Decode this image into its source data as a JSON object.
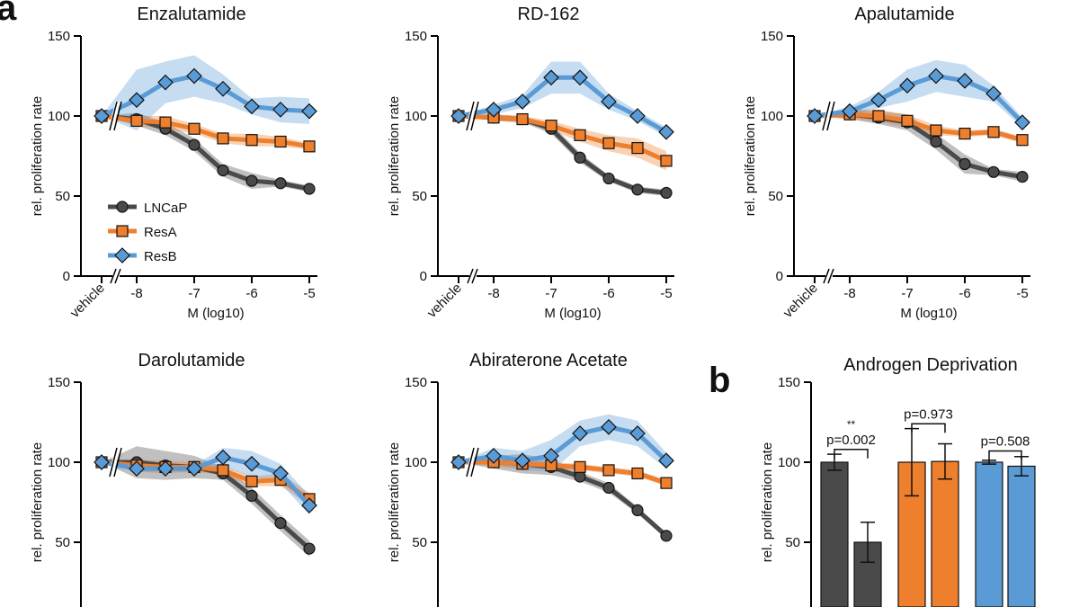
{
  "colors": {
    "LNCaP": "#4a4a4a",
    "ResA": "#ee7f2d",
    "ResB": "#5b9bd5"
  },
  "panel_labels": [
    "a",
    "b"
  ],
  "chart_data": [
    {
      "type": "line",
      "title": "Enzalutamide",
      "xlabel": "M (log10)",
      "ylabel": "rel. proliferation rate",
      "x": [
        "vehicle",
        -8,
        -7.5,
        -7,
        -6.5,
        -6,
        -5.5,
        -5
      ],
      "xticks": [
        "vehicle",
        "-8",
        "-7",
        "-6",
        "-5"
      ],
      "yticks": [
        "0",
        "50",
        "100",
        "150"
      ],
      "ylim": [
        0,
        150
      ],
      "legend": "lower-left",
      "series": [
        {
          "name": "LNCaP",
          "marker": "circle",
          "values": [
            100,
            98,
            92,
            82,
            66,
            59.5,
            58,
            54.5
          ],
          "err": [
            0,
            4,
            4,
            4,
            4,
            5,
            2,
            2
          ]
        },
        {
          "name": "ResA",
          "marker": "square",
          "values": [
            100,
            97,
            96,
            92,
            86,
            85,
            84,
            81
          ],
          "err": [
            0,
            3,
            4,
            3,
            3,
            4,
            3,
            2
          ]
        },
        {
          "name": "ResB",
          "marker": "diamond",
          "values": [
            100,
            110,
            121,
            125,
            117,
            106,
            104,
            103
          ],
          "err": [
            0,
            19,
            13,
            13,
            9,
            5,
            8,
            8
          ]
        }
      ]
    },
    {
      "type": "line",
      "title": "RD-162",
      "xlabel": "M (log10)",
      "ylabel": "rel. proliferation rate",
      "x": [
        "vehicle",
        -8,
        -7.5,
        -7,
        -6.5,
        -6,
        -5.5,
        -5
      ],
      "xticks": [
        "vehicle",
        "-8",
        "-7",
        "-6",
        "-5"
      ],
      "yticks": [
        "0",
        "50",
        "100",
        "150"
      ],
      "ylim": [
        0,
        150
      ],
      "series": [
        {
          "name": "LNCaP",
          "values": [
            100,
            99,
            98,
            92,
            74,
            61,
            54,
            52
          ],
          "err": [
            0,
            2,
            2,
            3,
            3,
            2,
            2,
            2
          ]
        },
        {
          "name": "ResA",
          "values": [
            100,
            99,
            98,
            94,
            88,
            83,
            80,
            72
          ],
          "err": [
            0,
            2,
            2,
            3,
            4,
            5,
            6,
            6
          ]
        },
        {
          "name": "ResB",
          "values": [
            100,
            104,
            109,
            124,
            124,
            109,
            100,
            90
          ],
          "err": [
            0,
            3,
            4,
            10,
            10,
            5,
            3,
            3
          ]
        }
      ]
    },
    {
      "type": "line",
      "title": "Apalutamide",
      "xlabel": "M (log10)",
      "ylabel": "rel. proliferation rate",
      "x": [
        "vehicle",
        -8,
        -7.5,
        -7,
        -6.5,
        -6,
        -5.5,
        -5
      ],
      "xticks": [
        "vehicle",
        "-8",
        "-7",
        "-6",
        "-5"
      ],
      "yticks": [
        "0",
        "50",
        "100",
        "150"
      ],
      "ylim": [
        0,
        150
      ],
      "series": [
        {
          "name": "LNCaP",
          "values": [
            100,
            101,
            99,
            96,
            84,
            70,
            65,
            62
          ],
          "err": [
            0,
            3,
            4,
            5,
            5,
            6,
            2,
            3
          ]
        },
        {
          "name": "ResA",
          "values": [
            100,
            101,
            100,
            97,
            91,
            89,
            90,
            85
          ],
          "err": [
            0,
            3,
            4,
            4,
            3,
            2,
            2,
            2
          ]
        },
        {
          "name": "ResB",
          "values": [
            100,
            103,
            110,
            119,
            125,
            122,
            114,
            96
          ],
          "err": [
            0,
            3,
            5,
            10,
            10,
            10,
            5,
            3
          ]
        }
      ]
    },
    {
      "type": "line",
      "title": "Darolutamide",
      "ylabel": "rel. proliferation rate",
      "x": [
        "vehicle",
        -8,
        -7.5,
        -7,
        -6.5,
        -6,
        -5.5,
        -5
      ],
      "yticks": [
        "50",
        "100",
        "150"
      ],
      "ylim": [
        0,
        150
      ],
      "series": [
        {
          "name": "LNCaP",
          "values": [
            100,
            100,
            98,
            97,
            93,
            79,
            62,
            46
          ],
          "err": [
            0,
            10,
            9,
            7,
            4,
            5,
            5,
            5
          ]
        },
        {
          "name": "ResA",
          "values": [
            100,
            98,
            97,
            97,
            95,
            88,
            89,
            77
          ],
          "err": [
            0,
            4,
            4,
            3,
            3,
            3,
            4,
            4
          ]
        },
        {
          "name": "ResB",
          "values": [
            100,
            96,
            96,
            96,
            103,
            99,
            93,
            73
          ],
          "err": [
            0,
            2,
            2,
            2,
            6,
            8,
            6,
            6
          ]
        }
      ]
    },
    {
      "type": "line",
      "title": "Abiraterone Acetate",
      "ylabel": "rel. proliferation rate",
      "x": [
        "vehicle",
        -8,
        -7.5,
        -7,
        -6.5,
        -6,
        -5.5,
        -5
      ],
      "yticks": [
        "50",
        "100",
        "150"
      ],
      "ylim": [
        0,
        150
      ],
      "series": [
        {
          "name": "LNCaP",
          "values": [
            100,
            100,
            99,
            97,
            91,
            84,
            70,
            54
          ],
          "err": [
            0,
            4,
            6,
            5,
            3,
            3,
            2,
            2
          ]
        },
        {
          "name": "ResA",
          "values": [
            100,
            100,
            99,
            98,
            97,
            95,
            93,
            87
          ],
          "err": [
            0,
            3,
            3,
            2,
            2,
            2,
            2,
            2
          ]
        },
        {
          "name": "ResB",
          "values": [
            100,
            104,
            101,
            104,
            118,
            122,
            118,
            101
          ],
          "err": [
            0,
            5,
            6,
            10,
            8,
            8,
            8,
            5
          ]
        }
      ]
    },
    {
      "type": "bar",
      "title": "Androgen Deprivation",
      "ylabel": "rel. proliferation rate",
      "yticks": [
        "50",
        "100",
        "150"
      ],
      "ylim": [
        0,
        150
      ],
      "bars": [
        {
          "group": "LNCaP",
          "value": 100,
          "err": 5
        },
        {
          "group": "LNCaP",
          "value": 50,
          "err": 12.5
        },
        {
          "group": "ResA",
          "value": 100,
          "err": 21
        },
        {
          "group": "ResA",
          "value": 100.5,
          "err": 11
        },
        {
          "group": "ResB",
          "value": 100,
          "err": 1.2
        },
        {
          "group": "ResB",
          "value": 97.5,
          "err": 6
        }
      ],
      "annotations": [
        {
          "text": "p=0.002",
          "stars": "**"
        },
        {
          "text": "p=0.973"
        },
        {
          "text": "p=0.508"
        }
      ]
    }
  ]
}
